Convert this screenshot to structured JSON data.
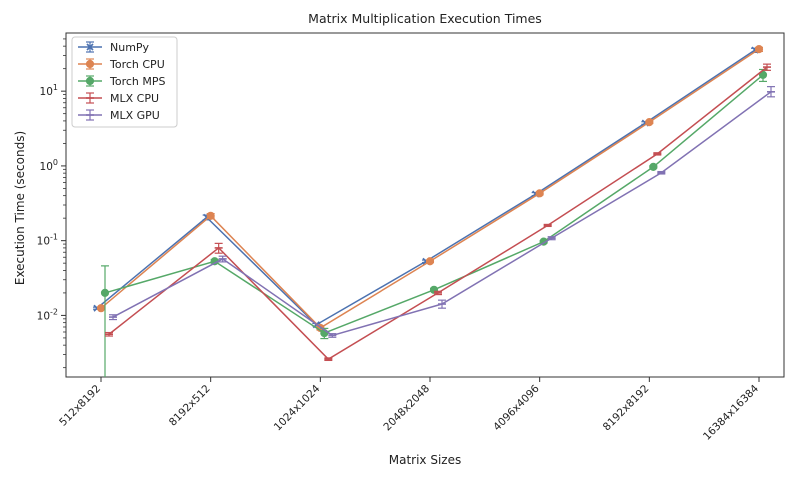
{
  "chart_data": {
    "type": "line",
    "title": "Matrix Multiplication Execution Times",
    "xlabel": "Matrix Sizes",
    "ylabel": "Execution Time (seconds)",
    "yscale": "log",
    "ylim": [
      0.0015,
      60
    ],
    "yticks": [
      {
        "value": 0.01,
        "base": "10",
        "exp": "-2"
      },
      {
        "value": 0.1,
        "base": "10",
        "exp": "-1"
      },
      {
        "value": 1,
        "base": "10",
        "exp": "0"
      },
      {
        "value": 10,
        "base": "10",
        "exp": "1"
      }
    ],
    "categories": [
      "512x8192",
      "8192x512",
      "1024x1024",
      "2048x2048",
      "4096x4096",
      "8192x8192",
      "16384x16384"
    ],
    "legend_position": "top-left",
    "grid": false,
    "series": [
      {
        "name": "NumPy",
        "color": "#4c72b0",
        "marker": "x",
        "values": [
          0.0125,
          0.205,
          0.0075,
          0.053,
          0.42,
          3.75,
          35.5
        ],
        "err_low": [
          0.0121,
          0.19,
          0.0072,
          0.051,
          0.4,
          3.6,
          33.0
        ],
        "err_high": [
          0.0129,
          0.22,
          0.0078,
          0.055,
          0.44,
          3.9,
          37.5
        ]
      },
      {
        "name": "Torch CPU",
        "color": "#dd8452",
        "marker": "o",
        "values": [
          0.0125,
          0.215,
          0.0068,
          0.053,
          0.43,
          3.85,
          36.5
        ],
        "err_low": [
          0.0121,
          0.2,
          0.0064,
          0.051,
          0.41,
          3.7,
          34.0
        ],
        "err_high": [
          0.0129,
          0.23,
          0.0072,
          0.055,
          0.45,
          4.0,
          38.5
        ]
      },
      {
        "name": "Torch MPS",
        "color": "#55a868",
        "marker": "o",
        "values": [
          0.02,
          0.053,
          0.0058,
          0.022,
          0.097,
          0.97,
          16.5
        ],
        "err_low": [
          0.001,
          0.05,
          0.0049,
          0.021,
          0.093,
          0.94,
          13.5
        ],
        "err_high": [
          0.046,
          0.056,
          0.0067,
          0.023,
          0.1,
          1.0,
          19.5
        ]
      },
      {
        "name": "MLX CPU",
        "color": "#c44e52",
        "marker": "_",
        "values": [
          0.0056,
          0.08,
          0.0026,
          0.02,
          0.16,
          1.45,
          21.0
        ],
        "err_low": [
          0.0053,
          0.068,
          0.0025,
          0.019,
          0.155,
          1.4,
          19.0
        ],
        "err_high": [
          0.0059,
          0.092,
          0.0027,
          0.021,
          0.165,
          1.5,
          23.0
        ]
      },
      {
        "name": "MLX GPU",
        "color": "#8172b3",
        "marker": "_",
        "values": [
          0.0095,
          0.057,
          0.0054,
          0.0142,
          0.108,
          0.81,
          9.8
        ],
        "err_low": [
          0.0088,
          0.052,
          0.0051,
          0.0125,
          0.103,
          0.78,
          8.4
        ],
        "err_high": [
          0.0102,
          0.062,
          0.0057,
          0.016,
          0.113,
          0.84,
          11.5
        ]
      }
    ]
  }
}
